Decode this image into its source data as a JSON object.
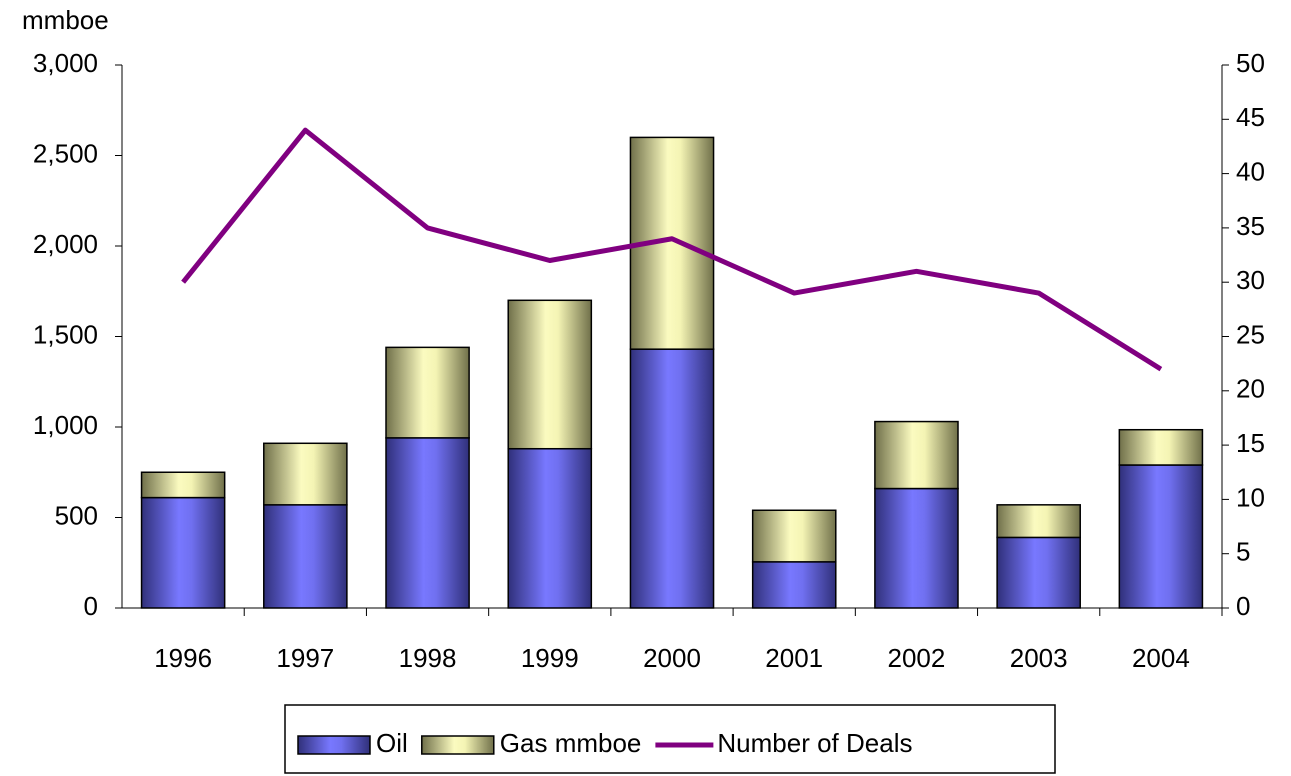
{
  "chart_data": {
    "type": "bar",
    "stacked": true,
    "y_label": "mmboe",
    "categories": [
      "1996",
      "1997",
      "1998",
      "1999",
      "2000",
      "2001",
      "2002",
      "2003",
      "2004"
    ],
    "series": [
      {
        "name": "Oil",
        "color": "#7070f0",
        "values": [
          610,
          570,
          940,
          880,
          1430,
          255,
          660,
          390,
          790
        ]
      },
      {
        "name": "Gas mmboe",
        "color": "#f8f8b8",
        "values": [
          140,
          340,
          500,
          820,
          1170,
          285,
          370,
          180,
          195
        ]
      },
      {
        "name": "Number of Deals",
        "color": "#800080",
        "type": "line",
        "axis": "y2",
        "values": [
          30,
          44,
          35,
          32,
          34,
          29,
          31,
          29,
          22
        ]
      }
    ],
    "ylim": [
      0,
      3000
    ],
    "yticks": [
      0,
      500,
      {
        "value": 1000,
        "label": "1,000"
      },
      {
        "value": 1500,
        "label": "1,500"
      },
      {
        "value": 2000,
        "label": "2,000"
      },
      {
        "value": 2500,
        "label": "2,500"
      },
      {
        "value": 3000,
        "label": "3,000"
      }
    ],
    "y2lim": [
      0,
      50
    ],
    "y2ticks": [
      0,
      5,
      10,
      15,
      20,
      25,
      30,
      35,
      40,
      45,
      50
    ],
    "legend": "bottom"
  }
}
